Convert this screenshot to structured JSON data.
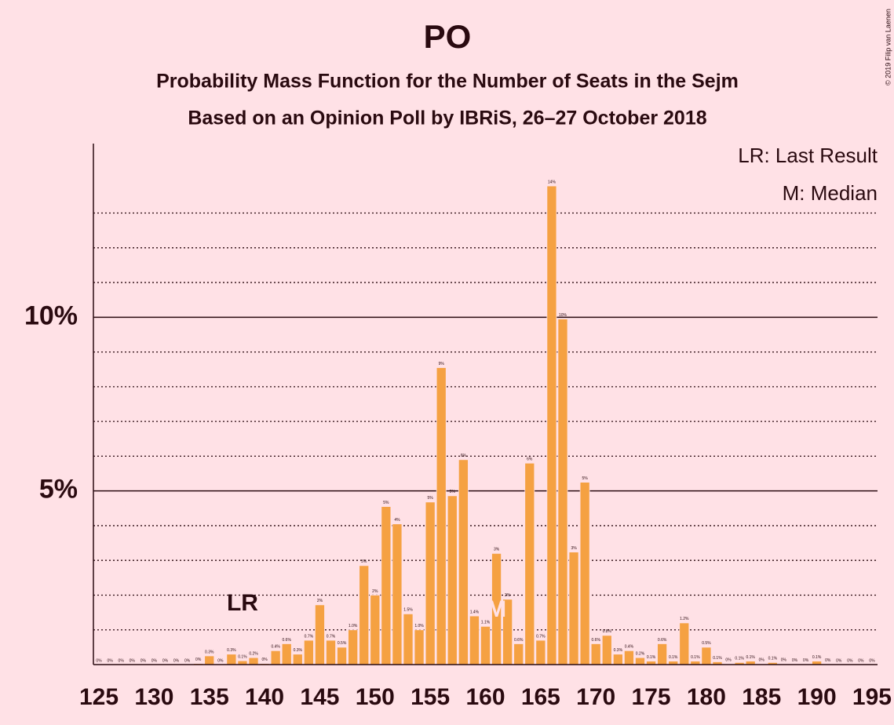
{
  "chart_data": {
    "type": "bar",
    "title": "PO",
    "subtitle": "Probability Mass Function for the Number of Seats in the Sejm",
    "subtitle2": "Based on an Opinion Poll by IBRiS, 26–27 October 2018",
    "copyright": "© 2019 Filip van Laenen",
    "legend": [
      "LR: Last Result",
      "M: Median"
    ],
    "legend_position": "upper right",
    "color": "#f5a142",
    "x": [
      125,
      126,
      127,
      128,
      129,
      130,
      131,
      132,
      133,
      134,
      135,
      136,
      137,
      138,
      139,
      140,
      141,
      142,
      143,
      144,
      145,
      146,
      147,
      148,
      149,
      150,
      151,
      152,
      153,
      154,
      155,
      156,
      157,
      158,
      159,
      160,
      161,
      162,
      163,
      164,
      165,
      166,
      167,
      168,
      169,
      170,
      171,
      172,
      173,
      174,
      175,
      176,
      177,
      178,
      179,
      180,
      181,
      182,
      183,
      184,
      185,
      186,
      187,
      188,
      189,
      190,
      191,
      192,
      193,
      194,
      195
    ],
    "values": [
      0,
      0,
      0,
      0,
      0,
      0,
      0,
      0,
      0,
      0.03,
      0.25,
      0,
      0.3,
      0.11,
      0.2,
      0.03,
      0.4,
      0.6,
      0.3,
      0.7,
      1.72,
      0.7,
      0.5,
      1.0,
      2.85,
      2.0,
      4.55,
      4.05,
      1.46,
      1.0,
      4.68,
      8.55,
      4.86,
      5.9,
      1.4,
      1.1,
      3.2,
      1.88,
      0.6,
      5.8,
      0.7,
      13.78,
      9.95,
      3.24,
      5.25,
      0.6,
      0.84,
      0.3,
      0.4,
      0.2,
      0.1,
      0.6,
      0.1,
      1.2,
      0.1,
      0.5,
      0.08,
      0.02,
      0.06,
      0.1,
      0.02,
      0.06,
      0.02,
      0.01,
      0.01,
      0.1,
      0.01,
      0,
      0,
      0,
      0
    ],
    "value_labels": [
      "0%",
      "0%",
      "0%",
      "0%",
      "0%",
      "0%",
      "0%",
      "0%",
      "0%",
      "0%",
      "0.3%",
      "0%",
      "0.3%",
      "0.1%",
      "0.2%",
      "0%",
      "0.4%",
      "0.6%",
      "0.3%",
      "0.7%",
      "2%",
      "0.7%",
      "0.5%",
      "1.0%",
      "3%",
      "2%",
      "5%",
      "4%",
      "1.5%",
      "1.0%",
      "5%",
      "9%",
      "5%",
      "6%",
      "1.4%",
      "1.1%",
      "3%",
      "2%",
      "0.6%",
      "6%",
      "0.7%",
      "14%",
      "10%",
      "3%",
      "5%",
      "0.6%",
      "0.8%",
      "0.3%",
      "0.4%",
      "0.2%",
      "0.1%",
      "0.6%",
      "0.1%",
      "1.2%",
      "0.1%",
      "0.5%",
      "0.1%",
      "0%",
      "0.1%",
      "0.1%",
      "0%",
      "0.1%",
      "0%",
      "0%",
      "0%",
      "0.1%",
      "0%",
      "0%",
      "0%",
      "0%",
      "0%"
    ],
    "xlim": [
      124.5,
      195.5
    ],
    "xticks": [
      125,
      130,
      135,
      140,
      145,
      150,
      155,
      160,
      165,
      170,
      175,
      180,
      185,
      190,
      195
    ],
    "ylim": [
      0,
      15
    ],
    "yticks": [
      {
        "value": 5,
        "label": "5%"
      },
      {
        "value": 10,
        "label": "10%"
      }
    ],
    "minor_yticks": [
      1,
      2,
      3,
      4,
      6,
      7,
      8,
      9,
      11,
      12,
      13
    ],
    "markers": [
      {
        "label": "LR",
        "x": 138
      },
      {
        "label": "M",
        "x": 161
      }
    ]
  }
}
